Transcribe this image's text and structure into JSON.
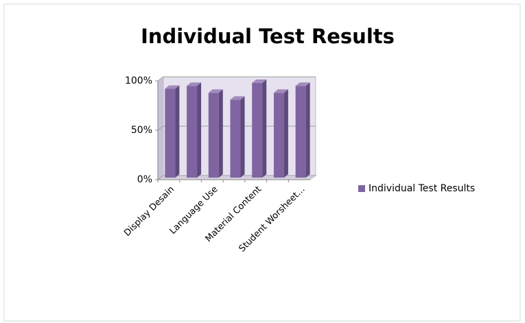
{
  "chart_data": {
    "type": "bar3d",
    "title": "Individual Test Results",
    "categories": [
      "Display Desain",
      null,
      "Language Use",
      null,
      "Material Content",
      null,
      "Student Worsheet..."
    ],
    "series": [
      {
        "name": "Individual Test Results",
        "color": "#8064a2",
        "values": [
          92,
          95,
          88,
          81,
          98,
          88,
          95
        ]
      }
    ],
    "ylim": [
      0,
      100
    ],
    "yticks": [
      {
        "value": 0,
        "label": "0%"
      },
      {
        "value": 50,
        "label": "50%"
      },
      {
        "value": 100,
        "label": "100%"
      }
    ],
    "grid": true,
    "legend": "right"
  }
}
